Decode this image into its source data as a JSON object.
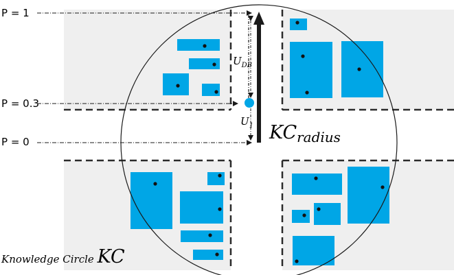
{
  "probability_labels": {
    "p_top": "P = 1",
    "p_mid": "P = 0.3",
    "p_bottom": "P = 0"
  },
  "vehicle_labels": {
    "u_db_main": "U",
    "u_db_sub": "DB",
    "u1_main": "U",
    "u1_sub": "1"
  },
  "radius_label": {
    "main": "KC",
    "sub": "radius"
  },
  "caption": {
    "text": "Knowledge Circle ",
    "symbol": "KC"
  },
  "colors": {
    "building": "#00a6e6",
    "block": "#efefef",
    "road_edge": "#2b2b2b",
    "circle": "#1a1a1a",
    "ego_vehicle": "#00a6e6"
  }
}
